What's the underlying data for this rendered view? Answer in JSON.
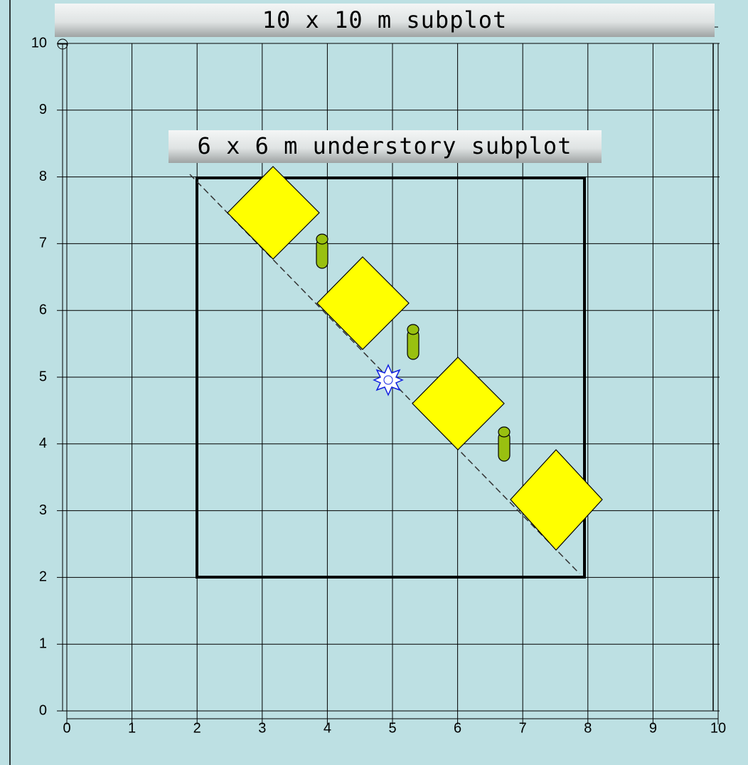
{
  "labels": {
    "outer": "10 x 10 m subplot",
    "inner": "6 x 6 m understory subplot"
  },
  "axes": {
    "xticks": [
      0,
      1,
      2,
      3,
      4,
      5,
      6,
      7,
      8,
      9,
      10
    ],
    "yticks": [
      0,
      1,
      2,
      3,
      4,
      5,
      6,
      7,
      8,
      9,
      10
    ]
  }
}
